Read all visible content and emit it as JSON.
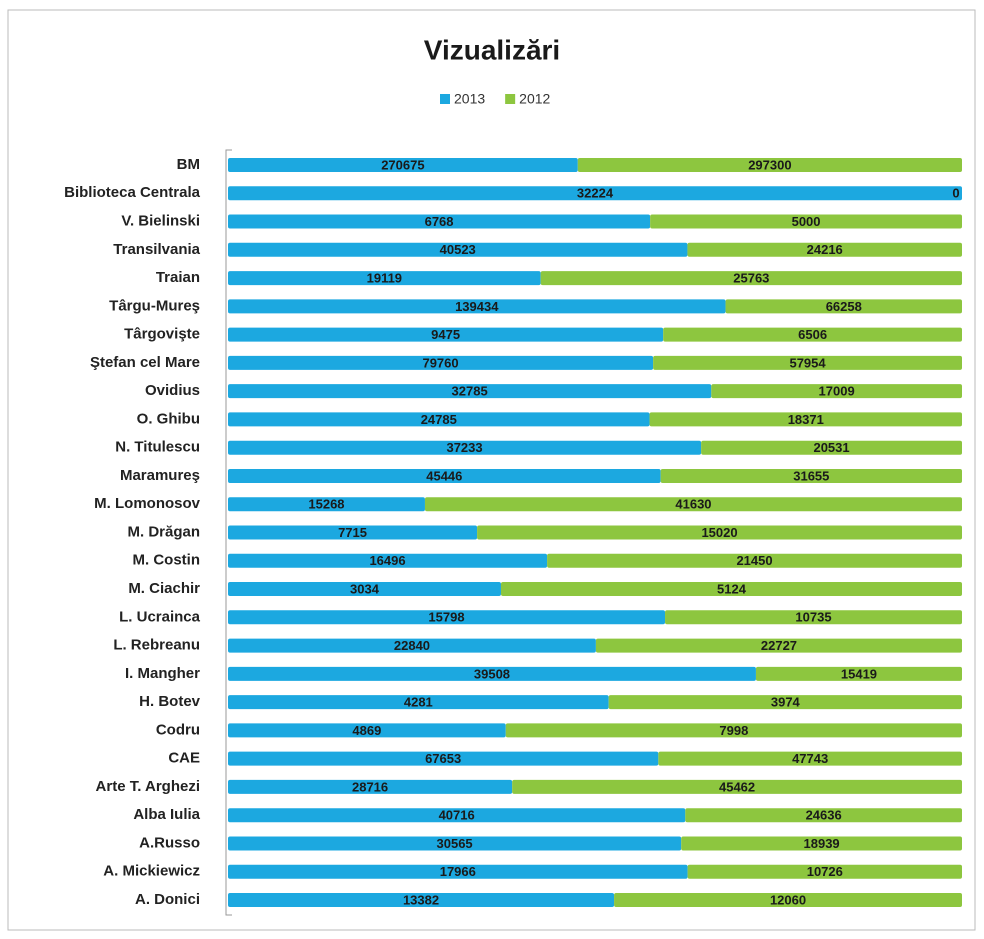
{
  "chart_data": {
    "type": "bar",
    "orientation": "horizontal",
    "stacking": "percent",
    "title": "Vizualizări",
    "categories": [
      "BM",
      "Biblioteca Centrala",
      "V. Bielinski",
      "Transilvania",
      "Traian",
      "Târgu-Mureş",
      "Târgovişte",
      "Ştefan cel Mare",
      "Ovidius",
      "O. Ghibu",
      "N. Titulescu",
      "Maramureş",
      "M. Lomonosov",
      "M. Drăgan",
      "M. Costin",
      "M. Ciachir",
      "L. Ucrainca",
      "L. Rebreanu",
      "I. Mangher",
      "H. Botev",
      "Codru",
      "CAE",
      "Arte T. Arghezi",
      "Alba Iulia",
      "A.Russo",
      "A. Mickiewicz",
      "A. Donici"
    ],
    "series": [
      {
        "name": "2013",
        "color": "#1ca8e0",
        "values": [
          270675,
          32224,
          6768,
          40523,
          19119,
          139434,
          9475,
          79760,
          32785,
          24785,
          37233,
          45446,
          15268,
          7715,
          16496,
          3034,
          15798,
          22840,
          39508,
          4281,
          4869,
          67653,
          28716,
          40716,
          30565,
          17966,
          13382
        ]
      },
      {
        "name": "2012",
        "color": "#8dc63f",
        "values": [
          297300,
          0,
          5000,
          24216,
          25763,
          66258,
          6506,
          57954,
          17009,
          18371,
          20531,
          31655,
          41630,
          15020,
          21450,
          5124,
          10735,
          22727,
          15419,
          3974,
          7998,
          47743,
          45462,
          24636,
          18939,
          10726,
          12060
        ]
      }
    ],
    "legend": "top"
  }
}
